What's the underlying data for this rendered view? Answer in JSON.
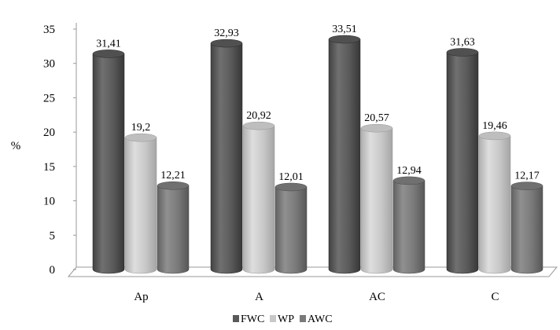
{
  "chart_data": {
    "type": "bar",
    "categories": [
      "Ap",
      "A",
      "AC",
      "C"
    ],
    "series": [
      {
        "name": "FWC",
        "values": [
          31.41,
          32.93,
          33.51,
          31.63
        ],
        "labels": [
          "31,41",
          "32,93",
          "33,51",
          "31,63"
        ]
      },
      {
        "name": "WP",
        "values": [
          19.2,
          20.92,
          20.57,
          19.46
        ],
        "labels": [
          "19,2",
          "20,92",
          "20,57",
          "19,46"
        ]
      },
      {
        "name": "AWC",
        "values": [
          12.21,
          12.01,
          12.94,
          12.17
        ],
        "labels": [
          "12,21",
          "12,01",
          "12,94",
          "12,17"
        ]
      }
    ],
    "title": "",
    "xlabel": "",
    "ylabel": "%",
    "ylim": [
      0,
      35
    ],
    "yticks": [
      0,
      5,
      10,
      15,
      20,
      25,
      30,
      35
    ],
    "grid": false,
    "legend_position": "bottom",
    "style": "3d-cylinder",
    "colors": {
      "FWC": "#5a5a5a",
      "WP": "#c8c8c8",
      "AWC": "#7a7a7a"
    }
  }
}
